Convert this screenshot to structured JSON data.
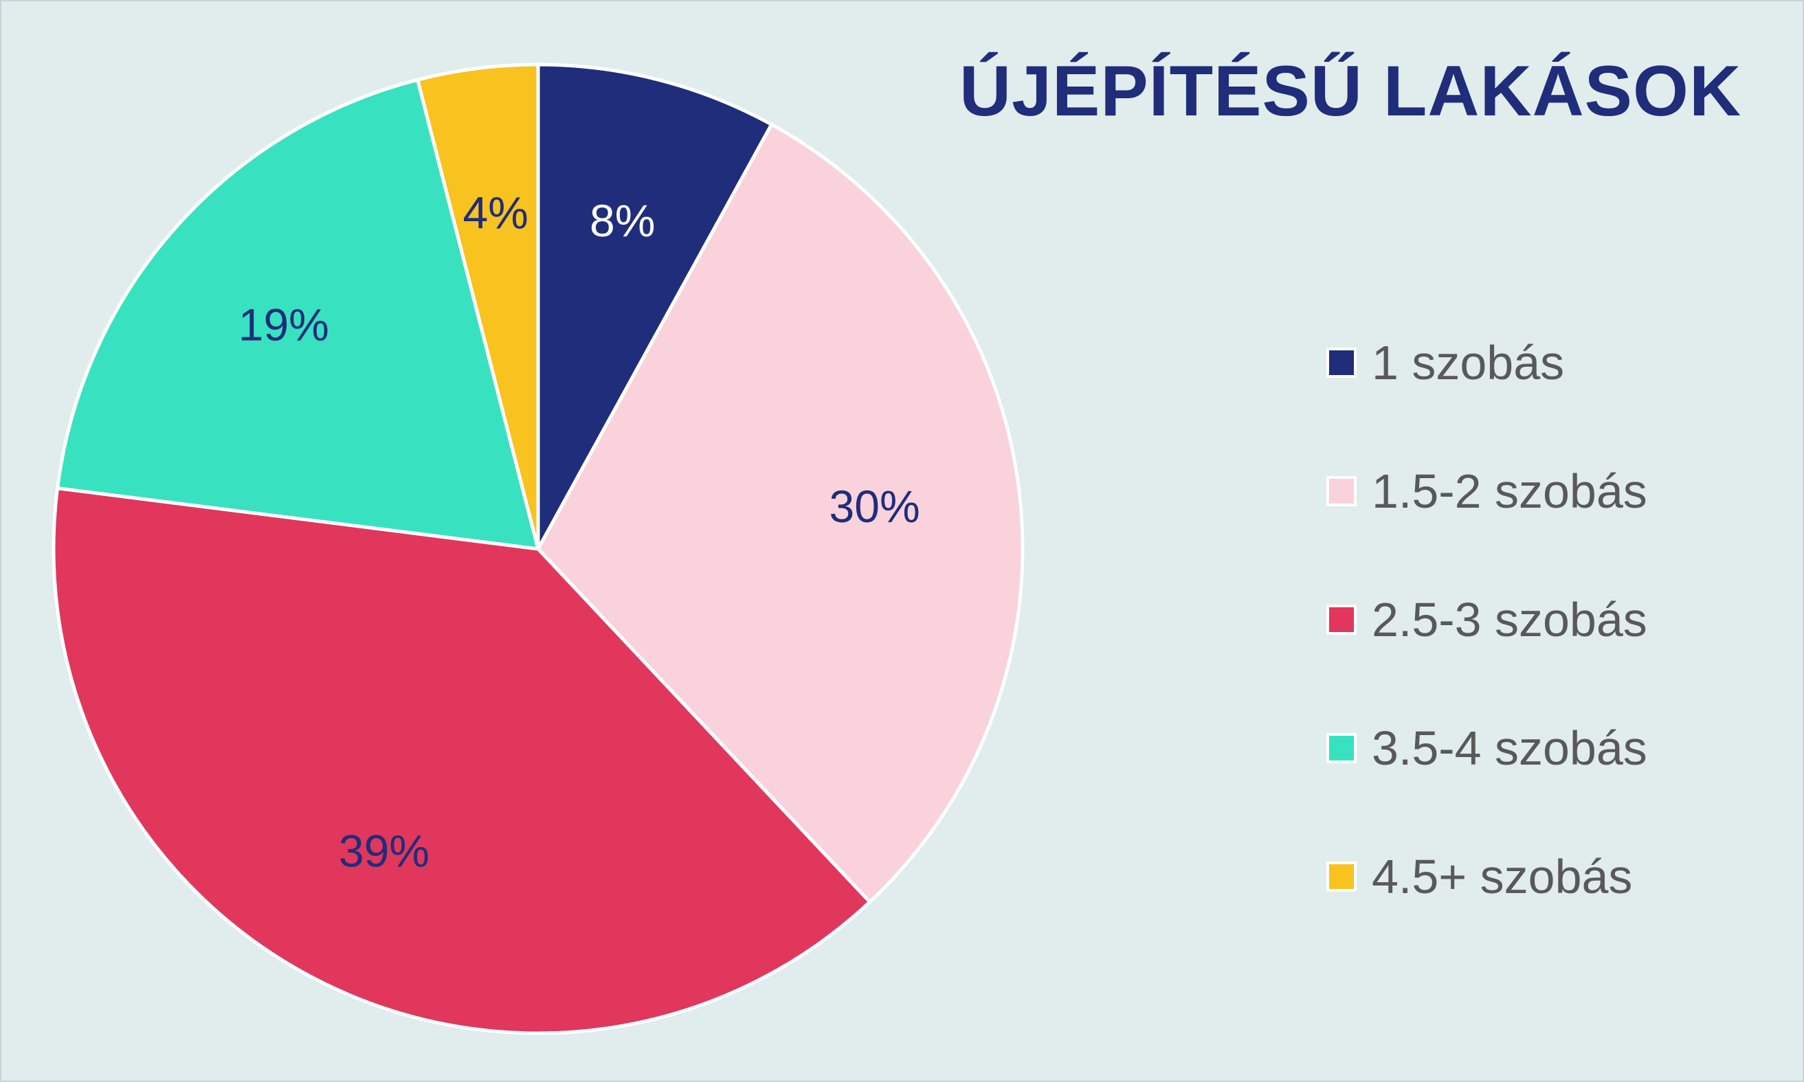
{
  "chart_data": {
    "type": "pie",
    "title": "ÚJÉPÍTÉSŰ LAKÁSOK",
    "categories": [
      "1 szobás",
      "1.5-2 szobás",
      "2.5-3 szobás",
      "3.5-4 szobás",
      "4.5+ szobás"
    ],
    "values": [
      8,
      30,
      39,
      19,
      4
    ],
    "data_labels": [
      "8%",
      "30%",
      "39%",
      "19%",
      "4%"
    ],
    "colors": [
      "#1f2d7a",
      "#f9d2dc",
      "#e1375c",
      "#38e2c0",
      "#f8c21f"
    ],
    "label_colors": [
      "#ffffff",
      "#1f2d7a",
      "#1f2d7a",
      "#1f2d7a",
      "#1f2d7a"
    ],
    "start_angle": "12 o'clock",
    "direction": "clockwise",
    "legend_position": "right"
  }
}
